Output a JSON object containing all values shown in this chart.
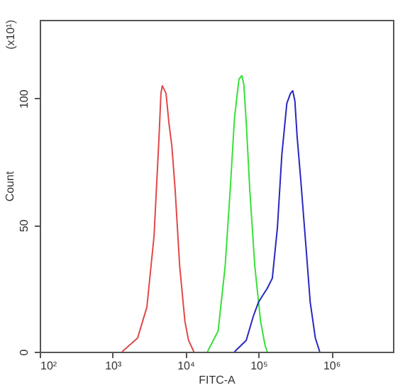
{
  "chart_data": {
    "type": "line",
    "xlabel": "FITC-A",
    "ylabel": "Count",
    "annotations": [
      "(x10¹)"
    ],
    "log": "x",
    "grid": false,
    "marker": "none",
    "line_style": "solid",
    "xlim": [
      100,
      7000000
    ],
    "xticks": [
      {
        "value": 100,
        "label": "10²"
      },
      {
        "value": 1000,
        "label": "10³"
      },
      {
        "value": 10000,
        "label": "10⁴"
      },
      {
        "value": 100000,
        "label": "10⁵"
      },
      {
        "value": 1000000,
        "label": "10⁶"
      }
    ],
    "ylim": [
      0,
      131
    ],
    "yticks": [
      0,
      50,
      100
    ],
    "series": [
      {
        "color": "#e04848",
        "x": [
          1350,
          2200,
          2950,
          3700,
          4300,
          4600,
          4800,
          5400,
          5900,
          6500,
          7200,
          8300,
          9800,
          11000,
          13000
        ],
        "values": [
          0,
          5.4,
          17.6,
          45.7,
          83,
          102,
          105,
          102,
          90.6,
          81,
          64,
          34,
          12,
          4.5,
          0
        ]
      },
      {
        "color": "#38e038",
        "x": [
          20000,
          28000,
          35000,
          41000,
          47000,
          54000,
          59000,
          63000,
          68000,
          76000,
          89000,
          107000,
          123000,
          132000
        ],
        "values": [
          0,
          8.2,
          34,
          64,
          92.5,
          107.5,
          109,
          105.6,
          90.6,
          64,
          34,
          12,
          2.6,
          0
        ]
      },
      {
        "color": "#2828c0",
        "x": [
          47000,
          68000,
          85000,
          100000,
          115000,
          132000,
          155000,
          182000,
          209000,
          245000,
          275000,
          295000,
          316000,
          339000,
          380000,
          447000,
          513000,
          603000,
          692000
        ],
        "values": [
          0,
          4.5,
          14,
          19.5,
          22.3,
          25,
          29,
          49,
          77.5,
          98,
          102,
          103,
          99,
          85,
          68,
          42,
          19.5,
          5.4,
          0
        ]
      }
    ]
  }
}
